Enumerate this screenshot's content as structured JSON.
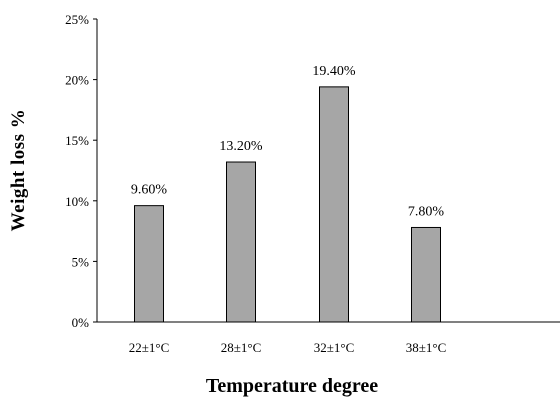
{
  "chart_data": {
    "type": "bar",
    "categories": [
      "22±1°C",
      "28±1°C",
      "32±1°C",
      "38±1°C"
    ],
    "values": [
      9.6,
      13.2,
      19.4,
      7.8
    ],
    "data_labels": [
      "9.60%",
      "13.20%",
      "19.40%",
      "7.80%"
    ],
    "y_ticks": [
      0,
      5,
      10,
      15,
      20,
      25
    ],
    "y_tick_labels": [
      "0%",
      "5%",
      "10%",
      "15%",
      "20%",
      "25%"
    ],
    "ylim": [
      0,
      25
    ],
    "xlabel": "Temperature degree",
    "ylabel": "Weight loss %",
    "title": "",
    "grid": false,
    "legend": "none",
    "bar_color": "#a6a6a6",
    "bar_edge_color": "#000000"
  }
}
